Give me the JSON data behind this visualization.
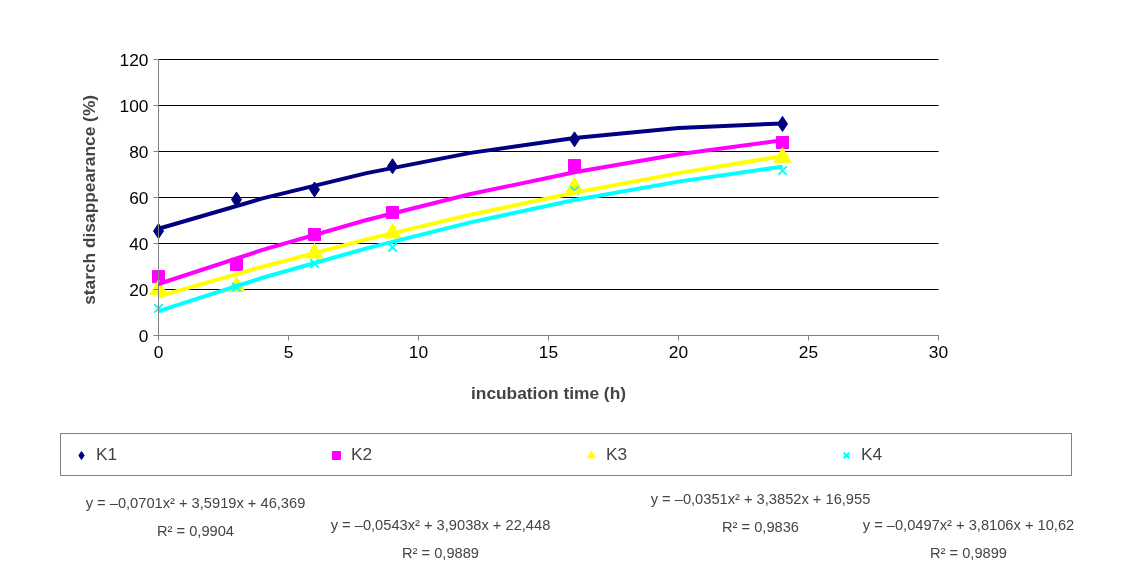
{
  "chart_data": {
    "type": "scatter",
    "xlabel": "incubation time (h)",
    "ylabel": "starch disappearance  (%)",
    "xlim": [
      0,
      30
    ],
    "xticks": [
      0,
      5,
      10,
      15,
      20,
      25,
      30
    ],
    "ylim": [
      0,
      120
    ],
    "yticks": [
      0,
      20,
      40,
      60,
      80,
      100,
      120
    ],
    "x": [
      0,
      3,
      6,
      9,
      16,
      24
    ],
    "series": [
      {
        "name": "K1",
        "color": "#000080",
        "marker": "diamond",
        "values": [
          45.4,
          59.1,
          63.5,
          73.6,
          85.3,
          92.0
        ]
      },
      {
        "name": "K2",
        "color": "#ff00ff",
        "marker": "square",
        "values": [
          25.6,
          30.9,
          43.9,
          53.5,
          73.9,
          83.9
        ]
      },
      {
        "name": "K3",
        "color": "#ffff00",
        "marker": "triangle",
        "values": [
          20.0,
          21.3,
          35.8,
          44.5,
          64.5,
          77.4
        ]
      },
      {
        "name": "K4",
        "color": "#00ffff",
        "marker": "cross",
        "values": [
          11.8,
          21.0,
          31.3,
          38.3,
          63.0,
          71.7
        ]
      },
      {
        "type": "line",
        "color": "#000080",
        "x": [
          0,
          4,
          8,
          12,
          16,
          20,
          24
        ],
        "values": [
          46.4,
          59.6,
          70.6,
          79.4,
          85.9,
          90.2,
          92.2
        ]
      },
      {
        "type": "line",
        "color": "#ff00ff",
        "x": [
          0,
          4,
          8,
          12,
          16,
          20,
          24
        ],
        "values": [
          22.4,
          37.2,
          50.2,
          61.5,
          71.0,
          78.8,
          84.9
        ]
      },
      {
        "type": "line",
        "color": "#ffff00",
        "x": [
          0,
          4,
          8,
          12,
          16,
          20,
          24
        ],
        "values": [
          17.0,
          29.9,
          41.8,
          52.5,
          62.1,
          70.6,
          78.0
        ]
      },
      {
        "type": "line",
        "color": "#00ffff",
        "x": [
          0,
          4,
          8,
          12,
          16,
          20,
          24
        ],
        "values": [
          10.6,
          25.1,
          37.9,
          49.2,
          58.9,
          66.9,
          73.4
        ]
      }
    ],
    "grid": "y",
    "legend": "bottom",
    "annotations": [
      "y = –0,0701x² + 3,5919x + 46,369",
      "R² = 0,9904",
      "y = –0,0543x² + 3,9038x + 22,448",
      "R² = 0,9889",
      "y = –0,0351x² + 3,3852x + 16,955",
      "R² = 0,9836",
      "y = –0,0497x² + 3,8106x + 10,62",
      "R² = 0,9899"
    ]
  }
}
